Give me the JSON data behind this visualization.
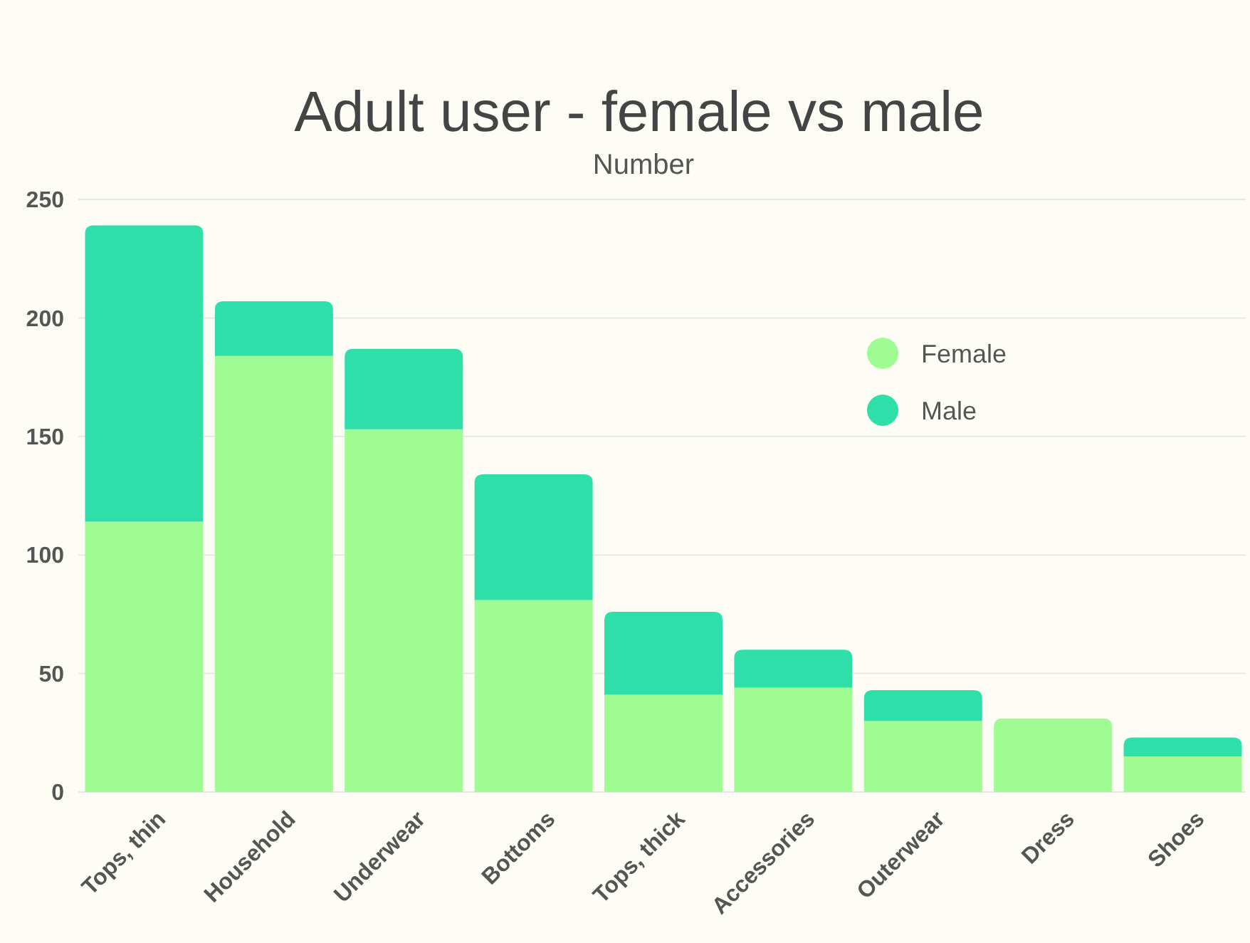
{
  "chart_data": {
    "type": "bar",
    "title": "Adult user - female vs male",
    "subtitle": "Number",
    "categories": [
      "Tops, thin",
      "Household",
      "Underwear",
      "Bottoms",
      "Tops, thick",
      "Accessories",
      "Outerwear",
      "Dress",
      "Shoes"
    ],
    "series": [
      {
        "name": "Female",
        "color": "#9efc92",
        "values": [
          114,
          184,
          153,
          81,
          41,
          44,
          30,
          31,
          15
        ]
      },
      {
        "name": "Male",
        "color": "#2edfa9",
        "values": [
          125,
          23,
          34,
          53,
          35,
          16,
          13,
          0,
          8
        ]
      }
    ],
    "stacked": true,
    "ylim": [
      0,
      250
    ],
    "yticks": [
      0,
      50,
      100,
      150,
      200,
      250
    ],
    "grid": "y",
    "legend": "top right"
  }
}
